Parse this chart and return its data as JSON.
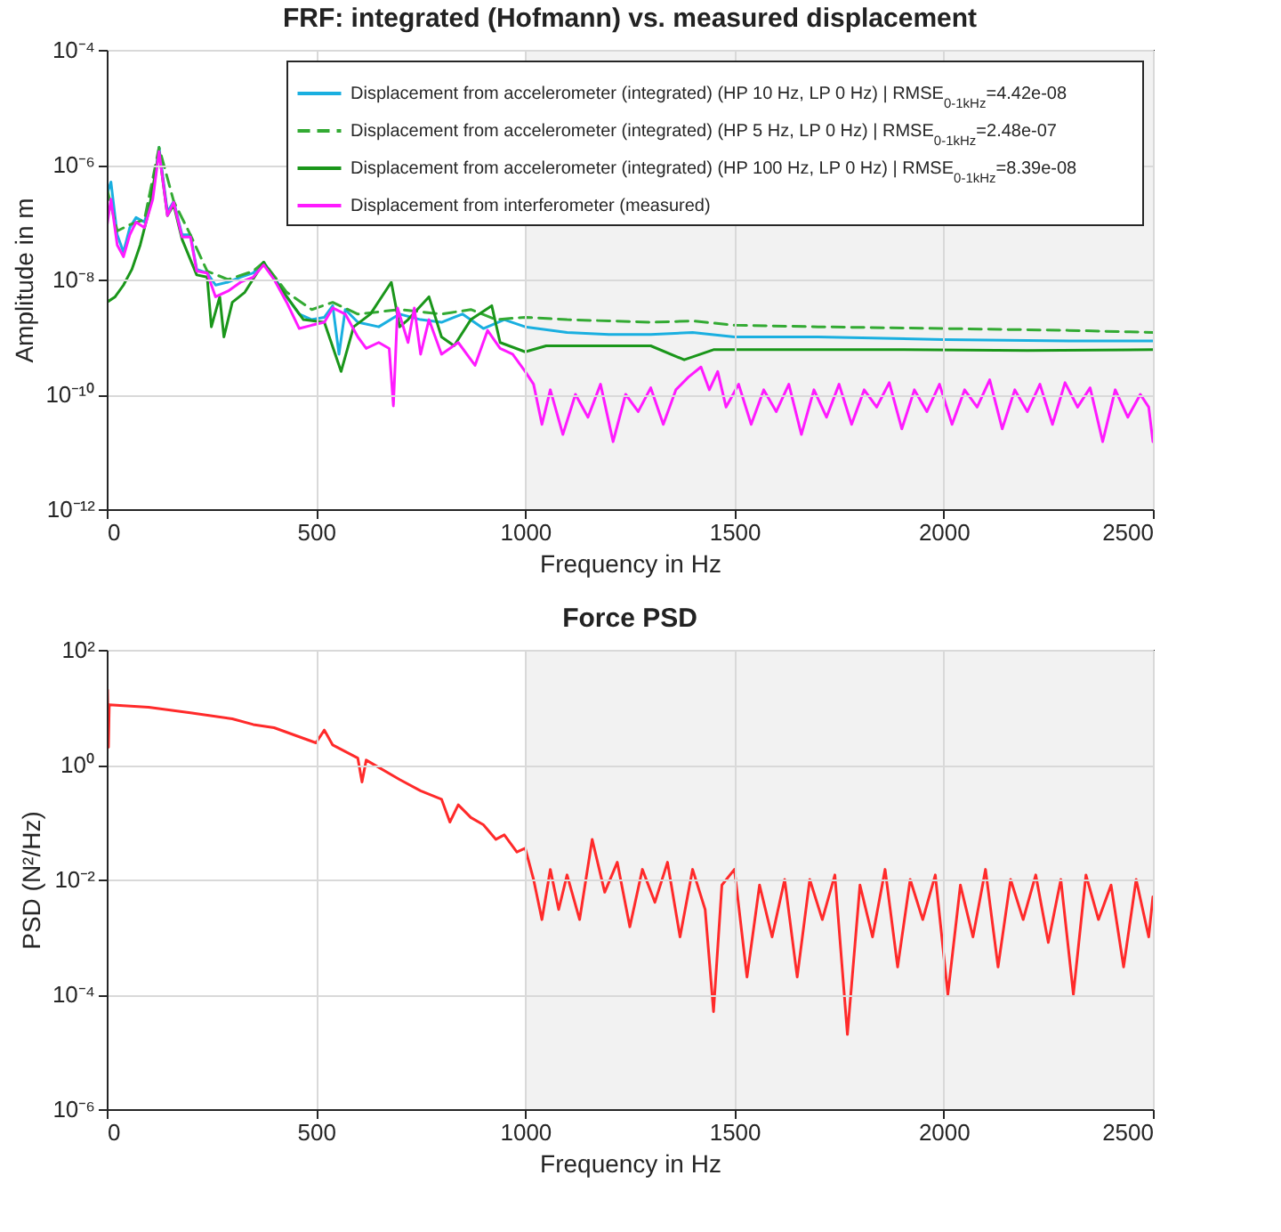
{
  "chart_data": [
    {
      "type": "line",
      "title": "FRF: integrated (Hofmann) vs. measured displacement",
      "xlabel": "Frequency in Hz",
      "ylabel": "Amplitude in m",
      "log": "y",
      "grid": true,
      "legend": "top right",
      "xlim": [
        0,
        2500
      ],
      "xticks": [
        0,
        500,
        1000,
        1500,
        2000,
        2500
      ],
      "ylim": [
        1e-12,
        0.0001
      ],
      "yticks": [
        {
          "value": 1e-12,
          "label": "10⁻¹²"
        },
        {
          "value": 1e-10,
          "label": "10⁻¹⁰"
        },
        {
          "value": 1e-08,
          "label": "10⁻⁸"
        },
        {
          "value": 1e-06,
          "label": "10⁻⁶"
        },
        {
          "value": 0.0001,
          "label": "10⁻⁴"
        }
      ],
      "bands": [
        {
          "axis": "x",
          "from": 1000,
          "to": 2500,
          "color": "#f2f2f2"
        }
      ],
      "series": [
        {
          "name": "Displacement from accelerometer (integrated) (HP 10 Hz, LP 0 Hz) | RMSE$_{0-1kHz}$=4.42e-08",
          "color": "#1aafe0",
          "line_style": "solid",
          "x": [
            0,
            10,
            25,
            40,
            55,
            70,
            90,
            110,
            125,
            145,
            160,
            180,
            200,
            215,
            240,
            260,
            290,
            320,
            350,
            375,
            400,
            430,
            460,
            490,
            520,
            540,
            555,
            570,
            600,
            650,
            700,
            750,
            800,
            850,
            900,
            950,
            1000,
            1100,
            1200,
            1300,
            1400,
            1500,
            1700,
            2000,
            2300,
            2500
          ],
          "values": [
            3e-07,
            5e-07,
            6e-08,
            3e-08,
            8e-08,
            1.2e-07,
            1e-07,
            3e-07,
            2e-06,
            1.5e-07,
            2.3e-07,
            6e-08,
            6e-08,
            1.5e-08,
            1.3e-08,
            8e-09,
            9e-09,
            1.1e-08,
            1.3e-08,
            2e-08,
            1.1e-08,
            5e-09,
            2.5e-09,
            2e-09,
            2.2e-09,
            3.5e-09,
            5e-10,
            3e-09,
            1.8e-09,
            1.5e-09,
            2.5e-09,
            2e-09,
            1.8e-09,
            2.5e-09,
            1.4e-09,
            2e-09,
            1.5e-09,
            1.2e-09,
            1.1e-09,
            1.1e-09,
            1.2e-09,
            1e-09,
            1e-09,
            9e-10,
            8.5e-10,
            8.5e-10
          ]
        },
        {
          "name": "Displacement from accelerometer (integrated) (HP 5 Hz, LP 0 Hz) | RMSE$_{0-1kHz}$=2.48e-07",
          "color": "#33aa33",
          "line_style": "dashed",
          "x": [
            0,
            25,
            55,
            90,
            125,
            160,
            200,
            240,
            290,
            350,
            375,
            430,
            490,
            540,
            600,
            700,
            800,
            870,
            930,
            1000,
            1100,
            1200,
            1300,
            1400,
            1500,
            1700,
            2000,
            2300,
            2500
          ],
          "values": [
            4e-07,
            7e-08,
            9e-08,
            1.1e-07,
            2e-06,
            2.3e-07,
            6e-08,
            1.4e-08,
            1e-08,
            1.4e-08,
            2e-08,
            6e-09,
            3e-09,
            4e-09,
            2.5e-09,
            3e-09,
            2.5e-09,
            3e-09,
            2e-09,
            2.2e-09,
            2e-09,
            1.9e-09,
            1.8e-09,
            1.9e-09,
            1.6e-09,
            1.5e-09,
            1.4e-09,
            1.3e-09,
            1.2e-09
          ]
        },
        {
          "name": "Displacement from accelerometer (integrated) (HP 100 Hz, LP 0 Hz) | RMSE$_{0-1kHz}$=8.39e-08",
          "color": "#1a961a",
          "line_style": "solid",
          "x": [
            0,
            20,
            40,
            60,
            80,
            100,
            125,
            145,
            160,
            180,
            215,
            240,
            250,
            270,
            280,
            300,
            330,
            375,
            410,
            440,
            470,
            520,
            560,
            590,
            630,
            680,
            700,
            720,
            770,
            800,
            830,
            870,
            920,
            940,
            1000,
            1050,
            1100,
            1200,
            1300,
            1380,
            1450,
            1600,
            1900,
            2200,
            2500
          ],
          "values": [
            4e-09,
            5e-09,
            8e-09,
            1.5e-08,
            4e-08,
            1.5e-07,
            1.7e-06,
            1.3e-07,
            2e-07,
            5e-08,
            1.2e-08,
            1.1e-08,
            1.5e-09,
            5e-09,
            1e-09,
            4e-09,
            6e-09,
            2e-08,
            8e-09,
            4e-09,
            2e-09,
            1.8e-09,
            2.5e-10,
            1.5e-09,
            2.5e-09,
            9e-09,
            1.5e-09,
            2e-09,
            5e-09,
            1e-09,
            7e-10,
            2e-09,
            3.5e-09,
            8e-10,
            5.5e-10,
            7e-10,
            7e-10,
            7e-10,
            7e-10,
            4e-10,
            6e-10,
            6e-10,
            6e-10,
            5.8e-10,
            6e-10
          ]
        },
        {
          "name": "Displacement from interferometer (measured)",
          "color": "#ff1aff",
          "line_style": "solid",
          "x": [
            0,
            10,
            25,
            40,
            55,
            70,
            90,
            110,
            125,
            145,
            160,
            180,
            200,
            215,
            240,
            260,
            290,
            320,
            350,
            375,
            400,
            430,
            460,
            490,
            520,
            540,
            570,
            600,
            620,
            650,
            675,
            685,
            695,
            720,
            735,
            750,
            770,
            800,
            840,
            880,
            910,
            940,
            970,
            1000,
            1020,
            1040,
            1060,
            1090,
            1120,
            1150,
            1180,
            1210,
            1240,
            1270,
            1300,
            1330,
            1360,
            1390,
            1420,
            1440,
            1460,
            1480,
            1510,
            1540,
            1570,
            1600,
            1630,
            1660,
            1690,
            1720,
            1750,
            1780,
            1810,
            1840,
            1870,
            1900,
            1930,
            1960,
            1990,
            2020,
            2050,
            2080,
            2110,
            2140,
            2170,
            2200,
            2230,
            2260,
            2290,
            2320,
            2350,
            2380,
            2410,
            2440,
            2470,
            2490,
            2500
          ],
          "values": [
            8e-08,
            2.5e-07,
            4e-08,
            2.5e-08,
            6e-08,
            1e-07,
            8e-08,
            2.5e-07,
            1.7e-06,
            1.3e-07,
            2.2e-07,
            5.5e-08,
            5.5e-08,
            1.4e-08,
            1.3e-08,
            5e-09,
            6.3e-09,
            9e-09,
            1.1e-08,
            1.8e-08,
            1e-08,
            4e-09,
            1.4e-09,
            1.6e-09,
            1.8e-09,
            3.2e-09,
            2.5e-09,
            1e-09,
            6.3e-10,
            8e-10,
            6.3e-10,
            6.3e-11,
            3.2e-09,
            8e-10,
            3.2e-09,
            5e-10,
            2e-09,
            5e-10,
            8e-10,
            3.2e-10,
            1.3e-09,
            6.3e-10,
            5e-10,
            2.5e-10,
            1.5e-10,
            3e-11,
            1.2e-10,
            2e-11,
            1e-10,
            4e-11,
            1.5e-10,
            1.5e-11,
            1e-10,
            5e-11,
            1.3e-10,
            3e-11,
            1.2e-10,
            2e-10,
            3e-10,
            1.2e-10,
            2.5e-10,
            6e-11,
            1.5e-10,
            3e-11,
            1.2e-10,
            5e-11,
            1.5e-10,
            2e-11,
            1.2e-10,
            4e-11,
            1.5e-10,
            3e-11,
            1.2e-10,
            6e-11,
            1.6e-10,
            2.5e-11,
            1.2e-10,
            5e-11,
            1.5e-10,
            3e-11,
            1.2e-10,
            6e-11,
            1.8e-10,
            2.5e-11,
            1.2e-10,
            5e-11,
            1.5e-10,
            3e-11,
            1.6e-10,
            6e-11,
            1.3e-10,
            1.5e-11,
            1.2e-10,
            4e-11,
            1e-10,
            6e-11,
            1.5e-11
          ]
        }
      ]
    },
    {
      "type": "line",
      "title": "Force PSD",
      "xlabel": "Frequency in Hz",
      "ylabel": "PSD (N²/Hz)",
      "log": "y",
      "grid": true,
      "xlim": [
        0,
        2500
      ],
      "xticks": [
        0,
        500,
        1000,
        1500,
        2000,
        2500
      ],
      "ylim": [
        1e-06,
        100
      ],
      "yticks": [
        {
          "value": 1e-06,
          "label": "10⁻⁶"
        },
        {
          "value": 0.0001,
          "label": "10⁻⁴"
        },
        {
          "value": 0.01,
          "label": "10⁻²"
        },
        {
          "value": 1,
          "label": "10⁰"
        },
        {
          "value": 100,
          "label": "10²"
        }
      ],
      "bands": [
        {
          "axis": "x",
          "from": 1000,
          "to": 2500,
          "color": "#f2f2f2"
        }
      ],
      "series": [
        {
          "color": "#ff2a2a",
          "line_style": "solid",
          "x": [
            0,
            2,
            4,
            6,
            100,
            200,
            300,
            350,
            400,
            500,
            520,
            540,
            600,
            610,
            620,
            700,
            750,
            800,
            820,
            840,
            870,
            900,
            930,
            950,
            980,
            1000,
            1020,
            1040,
            1060,
            1080,
            1100,
            1130,
            1160,
            1190,
            1220,
            1250,
            1280,
            1310,
            1340,
            1370,
            1400,
            1430,
            1450,
            1470,
            1500,
            1530,
            1560,
            1590,
            1620,
            1650,
            1680,
            1710,
            1740,
            1770,
            1800,
            1830,
            1860,
            1890,
            1920,
            1950,
            1980,
            2010,
            2040,
            2070,
            2100,
            2130,
            2160,
            2190,
            2220,
            2250,
            2280,
            2310,
            2340,
            2370,
            2400,
            2430,
            2460,
            2490,
            2500
          ],
          "values": [
            11,
            20,
            2,
            11,
            10,
            8,
            6.3,
            5,
            4.4,
            2.4,
            4,
            2.2,
            1.3,
            0.5,
            1.2,
            0.55,
            0.35,
            0.25,
            0.1,
            0.2,
            0.12,
            0.09,
            0.05,
            0.06,
            0.03,
            0.035,
            0.01,
            0.002,
            0.015,
            0.003,
            0.012,
            0.002,
            0.05,
            0.006,
            0.02,
            0.0015,
            0.015,
            0.004,
            0.02,
            0.001,
            0.015,
            0.003,
            5e-05,
            0.008,
            0.015,
            0.0002,
            0.008,
            0.001,
            0.01,
            0.0002,
            0.01,
            0.002,
            0.012,
            2e-05,
            0.008,
            0.001,
            0.015,
            0.0003,
            0.01,
            0.002,
            0.012,
            0.0001,
            0.008,
            0.001,
            0.015,
            0.0003,
            0.01,
            0.002,
            0.012,
            0.0008,
            0.01,
            0.0001,
            0.012,
            0.002,
            0.008,
            0.0003,
            0.01,
            0.001,
            0.005
          ]
        }
      ]
    }
  ]
}
